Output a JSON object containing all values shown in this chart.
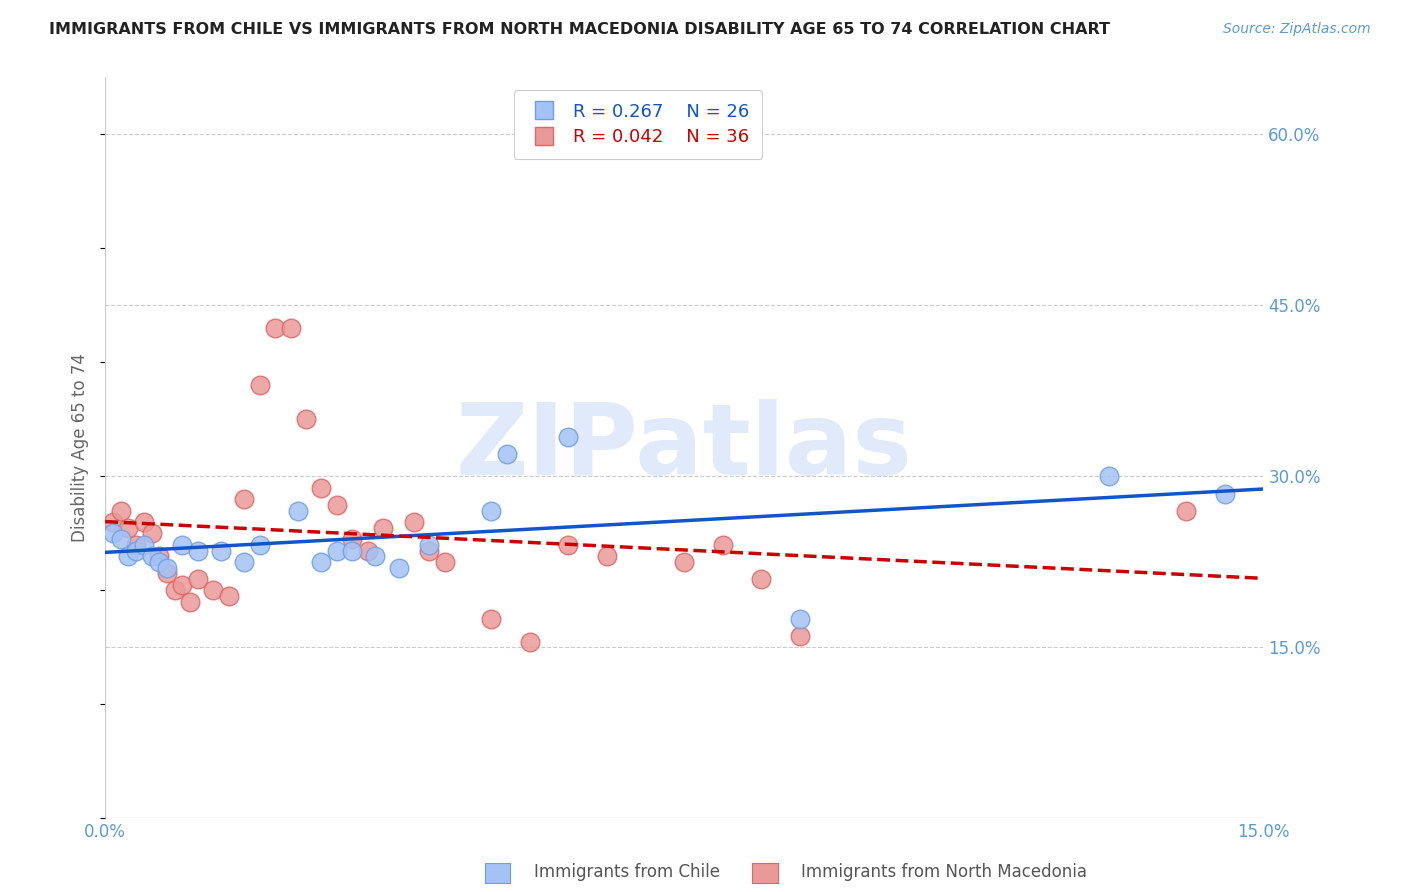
{
  "title": "IMMIGRANTS FROM CHILE VS IMMIGRANTS FROM NORTH MACEDONIA DISABILITY AGE 65 TO 74 CORRELATION CHART",
  "source": "Source: ZipAtlas.com",
  "ylabel": "Disability Age 65 to 74",
  "xlim": [
    0.0,
    0.15
  ],
  "ylim": [
    0.0,
    0.65
  ],
  "xtick_positions": [
    0.0,
    0.025,
    0.05,
    0.075,
    0.1,
    0.125,
    0.15
  ],
  "xtick_labels": [
    "0.0%",
    "",
    "",
    "",
    "",
    "",
    "15.0%"
  ],
  "ytick_right_positions": [
    0.15,
    0.3,
    0.45,
    0.6
  ],
  "ytick_right_labels": [
    "15.0%",
    "30.0%",
    "45.0%",
    "60.0%"
  ],
  "background_color": "#ffffff",
  "watermark_text": "ZIPatlas",
  "chile_color": "#a4c2f4",
  "chile_edge_color": "#6d9eeb",
  "macedonia_color": "#ea9999",
  "macedonia_edge_color": "#e06666",
  "chile_line_color": "#1155cc",
  "macedonia_line_color": "#cc0000",
  "legend_label_chile": "Immigrants from Chile",
  "legend_label_macedonia": "Immigrants from North Macedonia",
  "legend_R_chile": "R = 0.267",
  "legend_N_chile": "N = 26",
  "legend_R_macedonia": "R = 0.042",
  "legend_N_macedonia": "N = 36",
  "chile_x": [
    0.001,
    0.002,
    0.003,
    0.004,
    0.005,
    0.006,
    0.007,
    0.008,
    0.01,
    0.012,
    0.015,
    0.018,
    0.02,
    0.025,
    0.028,
    0.03,
    0.032,
    0.035,
    0.038,
    0.042,
    0.05,
    0.052,
    0.06,
    0.09,
    0.13,
    0.145
  ],
  "chile_y": [
    0.25,
    0.245,
    0.23,
    0.235,
    0.24,
    0.23,
    0.225,
    0.22,
    0.24,
    0.235,
    0.235,
    0.225,
    0.24,
    0.27,
    0.225,
    0.235,
    0.235,
    0.23,
    0.22,
    0.24,
    0.27,
    0.32,
    0.335,
    0.175,
    0.3,
    0.285
  ],
  "macedonia_x": [
    0.001,
    0.002,
    0.003,
    0.004,
    0.005,
    0.006,
    0.007,
    0.008,
    0.009,
    0.01,
    0.011,
    0.012,
    0.014,
    0.016,
    0.018,
    0.02,
    0.022,
    0.024,
    0.026,
    0.028,
    0.03,
    0.032,
    0.034,
    0.036,
    0.04,
    0.042,
    0.044,
    0.05,
    0.055,
    0.06,
    0.065,
    0.075,
    0.08,
    0.085,
    0.09,
    0.14
  ],
  "macedonia_y": [
    0.26,
    0.27,
    0.255,
    0.24,
    0.26,
    0.25,
    0.23,
    0.215,
    0.2,
    0.205,
    0.19,
    0.21,
    0.2,
    0.195,
    0.28,
    0.38,
    0.43,
    0.43,
    0.35,
    0.29,
    0.275,
    0.245,
    0.235,
    0.255,
    0.26,
    0.235,
    0.225,
    0.175,
    0.155,
    0.24,
    0.23,
    0.225,
    0.24,
    0.21,
    0.16,
    0.27
  ],
  "grid_color": "#cccccc",
  "grid_linestyle": "--",
  "grid_linewidth": 0.8,
  "axis_color": "#cccccc",
  "tick_color": "#5b9bd5",
  "ylabel_color": "#666666",
  "title_color": "#222222",
  "title_fontsize": 11.5,
  "source_fontsize": 10,
  "tick_fontsize": 12,
  "ylabel_fontsize": 12,
  "legend_fontsize": 13,
  "scatter_size": 180,
  "scatter_alpha": 0.85,
  "trendline_lw": 2.5
}
